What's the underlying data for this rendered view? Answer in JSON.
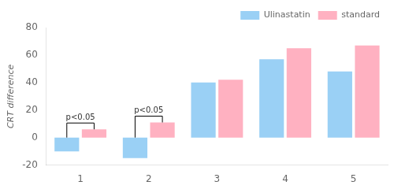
{
  "chart_data": {
    "type": "bar",
    "categories": [
      1,
      2,
      3,
      4,
      5
    ],
    "series": [
      {
        "name": "Ulinastatin",
        "values": [
          -10,
          -15,
          40,
          57,
          48
        ]
      },
      {
        "name": "standard",
        "values": [
          6,
          11,
          42,
          65,
          67
        ]
      }
    ],
    "ylabel": "CRT difference",
    "ylim": [
      -20,
      80
    ],
    "yticks": [
      -20,
      0,
      20,
      40,
      60,
      80
    ],
    "grid": false,
    "legend": "upper right",
    "annotations": [
      {
        "x": 1,
        "text": "p<0.05"
      },
      {
        "x": 2,
        "text": "p<0.05"
      }
    ]
  }
}
